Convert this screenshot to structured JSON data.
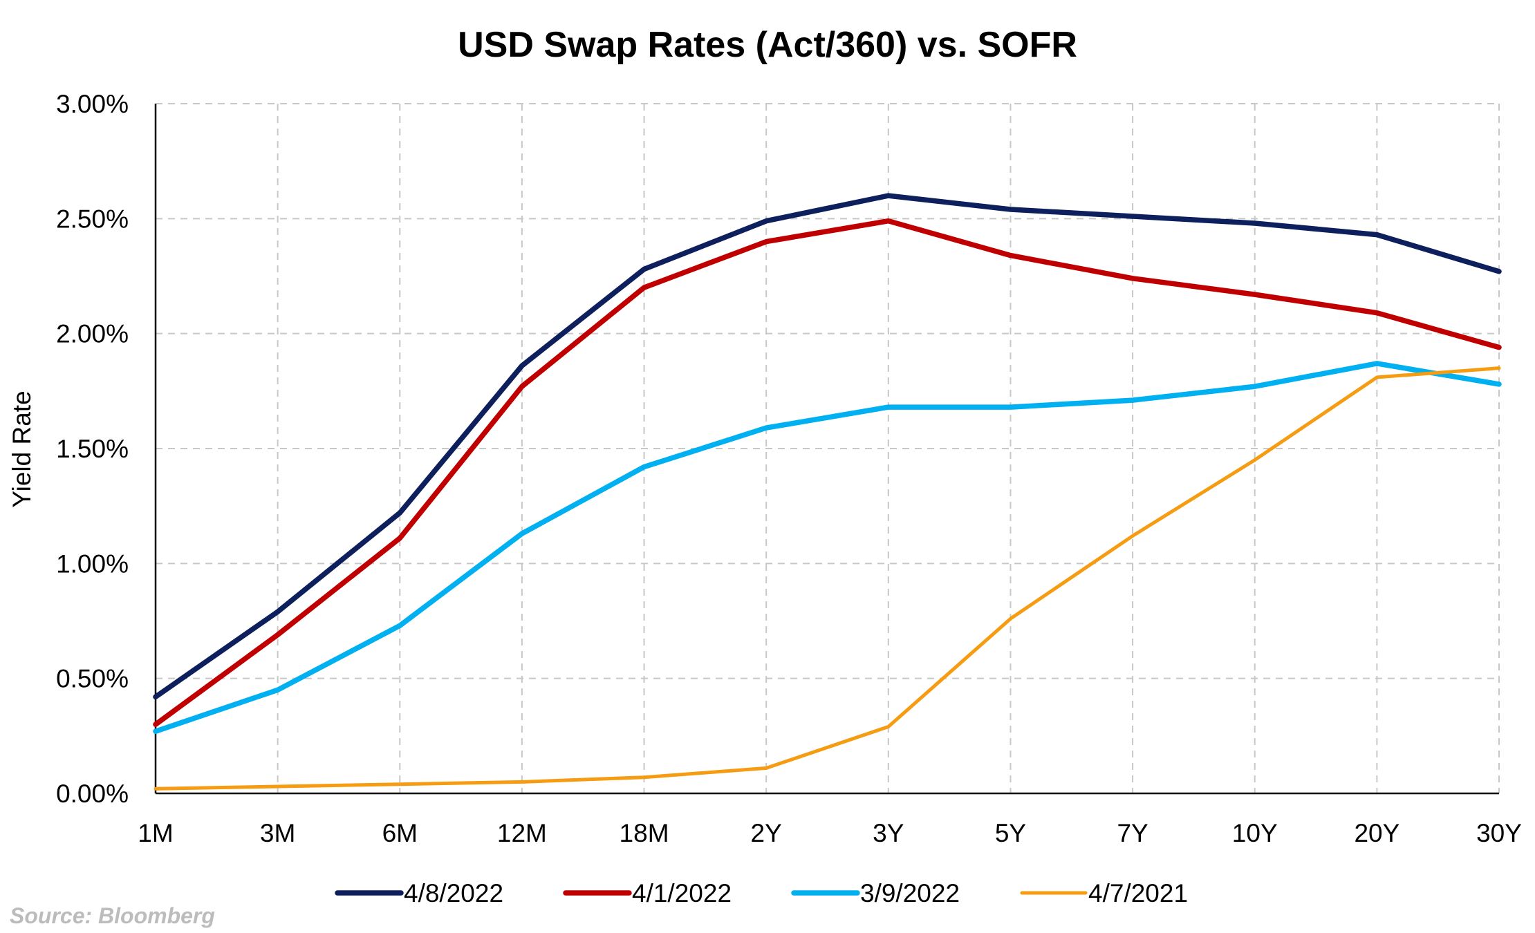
{
  "chart_data": {
    "type": "line",
    "title": "USD Swap Rates (Act/360) vs. SOFR",
    "ylabel": "Yield Rate",
    "xlabel": "",
    "categories": [
      "1M",
      "3M",
      "6M",
      "12M",
      "18M",
      "2Y",
      "3Y",
      "5Y",
      "7Y",
      "10Y",
      "20Y",
      "30Y"
    ],
    "yticks": [
      "0.00%",
      "0.50%",
      "1.00%",
      "1.50%",
      "2.00%",
      "2.50%",
      "3.00%"
    ],
    "ylim": [
      0,
      3
    ],
    "grid": true,
    "legend_position": "bottom",
    "series": [
      {
        "name": "4/8/2022",
        "color": "#0d1f5c",
        "width": 7.5,
        "values": [
          0.42,
          0.79,
          1.22,
          1.86,
          2.28,
          2.49,
          2.6,
          2.54,
          2.51,
          2.48,
          2.43,
          2.27
        ]
      },
      {
        "name": "4/1/2022",
        "color": "#c00000",
        "width": 7.5,
        "values": [
          0.3,
          0.69,
          1.11,
          1.77,
          2.2,
          2.4,
          2.49,
          2.34,
          2.24,
          2.17,
          2.09,
          1.94
        ]
      },
      {
        "name": "3/9/2022",
        "color": "#00b0f0",
        "width": 7.5,
        "values": [
          0.27,
          0.45,
          0.73,
          1.13,
          1.42,
          1.59,
          1.68,
          1.68,
          1.71,
          1.77,
          1.87,
          1.78
        ]
      },
      {
        "name": "4/7/2021",
        "color": "#f59c12",
        "width": 5,
        "values": [
          0.02,
          0.03,
          0.04,
          0.05,
          0.07,
          0.11,
          0.29,
          0.76,
          1.12,
          1.45,
          1.81,
          1.85
        ]
      }
    ],
    "source_note": "Source: Bloomberg"
  }
}
